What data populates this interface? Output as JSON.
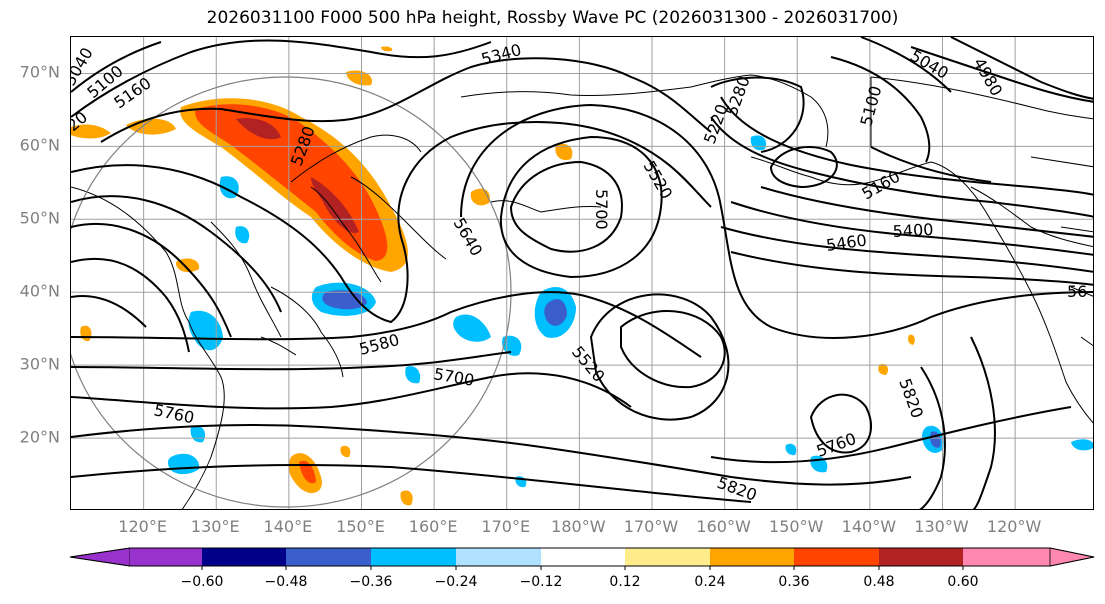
{
  "title": "2026031100 F000 500 hPa height, Rossby Wave PC (2026031300 - 2026031700)",
  "lat_labels": [
    "70°N",
    "60°N",
    "50°N",
    "40°N",
    "30°N",
    "20°N"
  ],
  "lat_values": [
    70,
    60,
    50,
    40,
    30,
    20
  ],
  "lon_labels": [
    "120°E",
    "130°E",
    "140°E",
    "150°E",
    "160°E",
    "170°E",
    "180°W",
    "170°W",
    "160°W",
    "150°W",
    "140°W",
    "130°W",
    "120°W"
  ],
  "lon_values": [
    120,
    130,
    140,
    150,
    160,
    170,
    180,
    190,
    200,
    210,
    220,
    230,
    240
  ],
  "map_extent": {
    "lon_min": 110,
    "lon_max": 251,
    "lat_min": 10,
    "lat_max": 75
  },
  "contour_labels": [
    "5040",
    "5100",
    "5160",
    "20",
    "5280",
    "5340",
    "5520",
    "5700",
    "5640",
    "5460",
    "5400",
    "5160",
    "5100",
    "5040",
    "4980",
    "5220",
    "5280",
    "5580",
    "5700",
    "5520",
    "5760",
    "5820",
    "5760",
    "5820",
    "56"
  ],
  "colorbar": {
    "ticks": [
      "−0.60",
      "−0.48",
      "−0.36",
      "−0.24",
      "−0.12",
      "0.12",
      "0.24",
      "0.36",
      "0.48",
      "0.60"
    ],
    "colors": [
      "#9932cc",
      "#00008b",
      "#3a5fcd",
      "#00bfff",
      "#b0e2ff",
      "#ffffff",
      "#ffec8b",
      "#ffa500",
      "#ff4500",
      "#b22222",
      "#ff87b0"
    ]
  },
  "colors": {
    "contour": "#000000",
    "grid": "#a0a0a0",
    "coast": "#000000",
    "circle": "#808080"
  }
}
